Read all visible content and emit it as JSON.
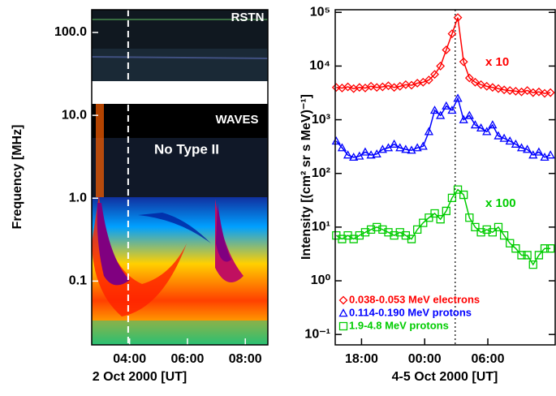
{
  "chart_data": [
    {
      "type": "spectrogram",
      "ylabel": "Frequency [MHz]",
      "xlabel": "2 Oct 2000 [UT]",
      "log_y": true,
      "ylim": [
        0.017,
        188
      ],
      "yticks": [
        {
          "value": 100,
          "label": "100.0"
        },
        {
          "value": 10,
          "label": "10.0"
        },
        {
          "value": 1,
          "label": "1.0"
        },
        {
          "value": 0.1,
          "label": "0.1"
        }
      ],
      "xlim": [
        2.69,
        8.78
      ],
      "xticks": [
        {
          "value": 4,
          "label": "04:00"
        },
        {
          "value": 6,
          "label": "06:00"
        },
        {
          "value": 8,
          "label": "08:00"
        }
      ],
      "vline": 3.95,
      "annotations": [
        {
          "text": "RSTN",
          "color": "#ffffff"
        },
        {
          "text": "WAVES",
          "color": "#ffffff"
        },
        {
          "text": "No Type II",
          "color": "#ffffff"
        }
      ]
    },
    {
      "type": "line",
      "ylabel": "Intensity [(cm² sr s MeV)⁻¹]",
      "xlabel": "4-5 Oct 2000 [UT]",
      "log_y": true,
      "ylim": [
        0.064,
        112000
      ],
      "yticks": [
        {
          "value": 0.1,
          "label": "10⁻¹"
        },
        {
          "value": 1,
          "label": "10⁰"
        },
        {
          "value": 10,
          "label": "10¹"
        },
        {
          "value": 100,
          "label": "10²"
        },
        {
          "value": 1000,
          "label": "10³"
        },
        {
          "value": 10000,
          "label": "10⁴"
        },
        {
          "value": 100000,
          "label": "10⁵"
        }
      ],
      "xlim": [
        15.5,
        36.4
      ],
      "xticks": [
        {
          "value": 18,
          "label": "18:00"
        },
        {
          "value": 24,
          "label": "00:00"
        },
        {
          "value": 30,
          "label": "06:00"
        }
      ],
      "vline": 26.9,
      "x": [
        15.6,
        16.15,
        16.7,
        17.25,
        17.8,
        18.35,
        18.9,
        19.45,
        20.0,
        20.55,
        21.1,
        21.65,
        22.2,
        22.75,
        23.3,
        23.85,
        24.4,
        24.95,
        25.5,
        26.05,
        26.6,
        27.15,
        27.7,
        28.25,
        28.8,
        29.35,
        29.9,
        30.45,
        31.0,
        31.55,
        32.1,
        32.65,
        33.2,
        33.75,
        34.3,
        34.85,
        35.4,
        35.95
      ],
      "series": [
        {
          "name": "0.038-0.053 MeV electrons",
          "color": "#ff0000",
          "marker": "diamond",
          "values": [
            4000,
            3900,
            4100,
            3800,
            4000,
            3900,
            4200,
            4000,
            4100,
            4300,
            4000,
            4200,
            4500,
            4400,
            4800,
            5000,
            5500,
            7000,
            10000,
            20000,
            40000,
            80000,
            12000,
            6000,
            5000,
            4500,
            4200,
            4000,
            3800,
            3600,
            3500,
            3400,
            3300,
            3500,
            3200,
            3300,
            3100,
            3200
          ]
        },
        {
          "name": "0.114-0.190 MeV protons",
          "color": "#0000ff",
          "marker": "triangle",
          "values": [
            400,
            300,
            220,
            200,
            210,
            250,
            220,
            230,
            280,
            300,
            350,
            300,
            280,
            270,
            300,
            320,
            600,
            1500,
            1200,
            1800,
            1500,
            2500,
            1000,
            1200,
            800,
            700,
            600,
            800,
            500,
            450,
            400,
            350,
            300,
            280,
            220,
            250,
            200,
            220
          ]
        },
        {
          "name": "1.9-4.8 MeV protons",
          "color": "#00cc00",
          "marker": "square",
          "values": [
            7,
            6,
            7,
            6,
            7,
            8,
            9,
            10,
            9,
            8,
            7,
            8,
            7,
            6,
            9,
            12,
            15,
            18,
            14,
            20,
            35,
            50,
            40,
            15,
            10,
            8,
            9,
            8,
            10,
            7,
            5,
            4,
            3,
            3,
            2,
            3,
            4,
            4
          ]
        }
      ],
      "annotations": [
        {
          "text": "x 10",
          "color": "#ff0000"
        },
        {
          "text": "x 100",
          "color": "#00cc00"
        }
      ]
    }
  ]
}
